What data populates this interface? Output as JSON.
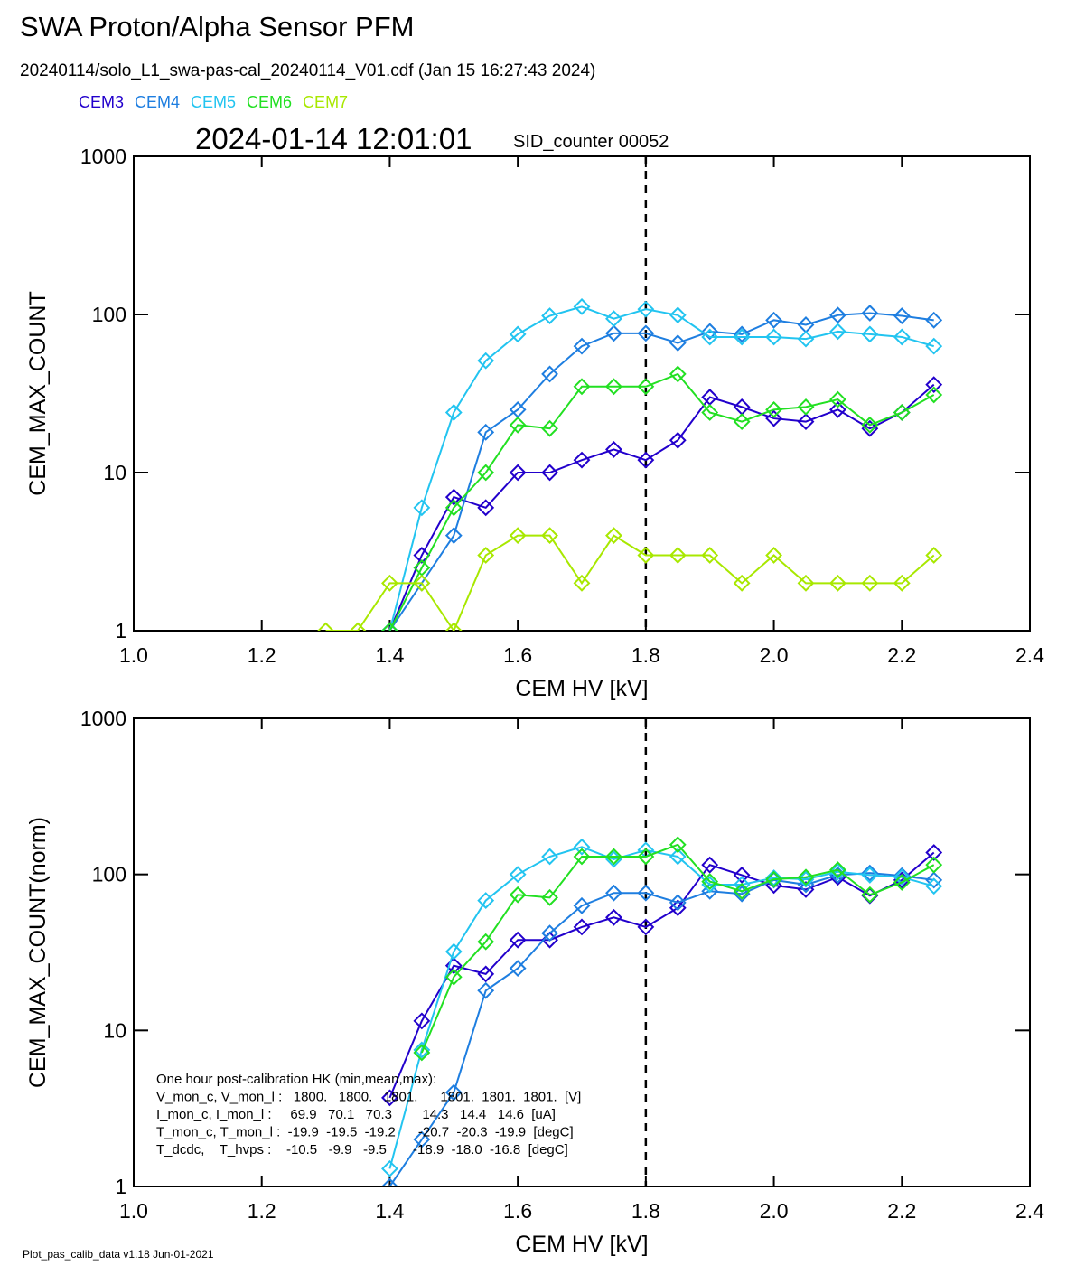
{
  "header": {
    "title": "SWA Proton/Alpha Sensor PFM",
    "subtitle": "20240114/solo_L1_swa-pas-cal_20240114_V01.cdf  (Jan 15 16:27:43 2024)",
    "timestamp": "2024-01-14 12:01:01",
    "counter": "SID_counter 00052"
  },
  "footer": "Plot_pas_calib_data v1.18 Jun-01-2021",
  "chart_data": [
    {
      "type": "line",
      "log_y": true,
      "xlabel": "CEM HV [kV]",
      "ylabel": "CEM_MAX_COUNT",
      "vline": 1.8,
      "x": [
        1.3,
        1.35,
        1.4,
        1.45,
        1.5,
        1.55,
        1.6,
        1.65,
        1.7,
        1.75,
        1.8,
        1.85,
        1.9,
        1.95,
        2.0,
        2.05,
        2.1,
        2.15,
        2.2,
        2.25
      ],
      "xlim": [
        1.0,
        2.4
      ],
      "xticks": [
        {
          "value": 1.0,
          "label": "1.0"
        },
        1.2,
        1.4,
        1.6,
        1.8,
        {
          "value": 2.0,
          "label": "2.0"
        },
        2.2,
        2.4
      ],
      "ylim": [
        1,
        1000
      ],
      "yticks": [
        1,
        10,
        100,
        1000
      ],
      "series": [
        {
          "name": "CEM3",
          "color": "#2200cc",
          "values": [
            null,
            null,
            1,
            3,
            7,
            6,
            10,
            10,
            12,
            14,
            12,
            16,
            30,
            26,
            22,
            21,
            25,
            19,
            24,
            36
          ]
        },
        {
          "name": "CEM4",
          "color": "#1e7ee0",
          "values": [
            null,
            null,
            1,
            2,
            4,
            18,
            25,
            42,
            63,
            76,
            76,
            66,
            78,
            75,
            92,
            86,
            99,
            102,
            98,
            92
          ]
        },
        {
          "name": "CEM5",
          "color": "#22c4f0",
          "values": [
            null,
            null,
            1,
            6,
            24,
            51,
            75,
            98,
            112,
            94,
            108,
            99,
            72,
            72,
            72,
            70,
            78,
            75,
            72,
            63
          ]
        },
        {
          "name": "CEM6",
          "color": "#22e022",
          "values": [
            null,
            null,
            1,
            2.5,
            6,
            10,
            20,
            19,
            35,
            35,
            35,
            42,
            24,
            21,
            25,
            26,
            29,
            20,
            24,
            31
          ]
        },
        {
          "name": "CEM7",
          "color": "#a8e800",
          "values": [
            1,
            1,
            2,
            2,
            1,
            3,
            4,
            4,
            2,
            4,
            3,
            3,
            3,
            2,
            3,
            2,
            2,
            2,
            2,
            3
          ]
        }
      ]
    },
    {
      "type": "line",
      "log_y": true,
      "xlabel": "CEM HV [kV]",
      "ylabel": "CEM_MAX_COUNT(norm)",
      "vline": 1.8,
      "x": [
        1.4,
        1.45,
        1.5,
        1.55,
        1.6,
        1.65,
        1.7,
        1.75,
        1.8,
        1.85,
        1.9,
        1.95,
        2.0,
        2.05,
        2.1,
        2.15,
        2.2,
        2.25
      ],
      "xlim": [
        1.0,
        2.4
      ],
      "xticks": [
        {
          "value": 1.0,
          "label": "1.0"
        },
        1.2,
        1.4,
        1.6,
        1.8,
        {
          "value": 2.0,
          "label": "2.0"
        },
        2.2,
        2.4
      ],
      "ylim": [
        1,
        1000
      ],
      "yticks": [
        1,
        10,
        100,
        1000
      ],
      "series": [
        {
          "name": "CEM3",
          "color": "#2200cc",
          "values": [
            3.7,
            11.5,
            26,
            23,
            38,
            38,
            46,
            53,
            46,
            61,
            115,
            99,
            85,
            80,
            96,
            73,
            92,
            138
          ]
        },
        {
          "name": "CEM4",
          "color": "#1e7ee0",
          "values": [
            1,
            2,
            4,
            18,
            25,
            42,
            63,
            76,
            76,
            66,
            78,
            75,
            92,
            86,
            99,
            102,
            98,
            92
          ]
        },
        {
          "name": "CEM5",
          "color": "#22c4f0",
          "values": [
            1.3,
            7.5,
            32,
            68,
            100,
            130,
            150,
            125,
            143,
            130,
            86,
            86,
            95,
            93,
            104,
            99,
            96,
            84
          ]
        },
        {
          "name": "CEM6",
          "color": "#22e022",
          "values": [
            null,
            7.2,
            22,
            37,
            74,
            71,
            130,
            130,
            130,
            155,
            90,
            78,
            93,
            96,
            107,
            74,
            89,
            115
          ]
        }
      ],
      "annotation": [
        "One hour post-calibration HK (min,mean,max):",
        "V_mon_c, V_mon_l :   1800.   1800.   1801.      1801.  1801.  1801.  [V]",
        "I_mon_c, I_mon_l :     69.9   70.1   70.3        14.3   14.4   14.6  [uA]",
        "T_mon_c, T_mon_l :  -19.9  -19.5  -19.2      -20.7  -20.3  -19.9  [degC]",
        "T_dcdc,    T_hvps :    -10.5   -9.9   -9.5       -18.9  -18.0  -16.8  [degC]"
      ]
    }
  ]
}
